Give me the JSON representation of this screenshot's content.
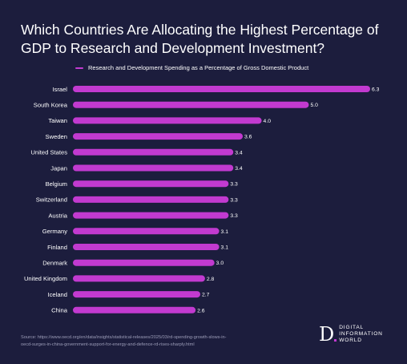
{
  "header": {
    "title": "Which Countries Are Allocating the Highest Percentage of GDP to Research and Development Investment?"
  },
  "colors": {
    "background": "#1c1d3d",
    "bar": "#c23ad0",
    "text": "#ffffff",
    "muted": "#9c9db8"
  },
  "chart_data": {
    "type": "bar",
    "orientation": "horizontal",
    "categories": [
      "Israel",
      "South Korea",
      "Taiwan",
      "Sweden",
      "United States",
      "Japan",
      "Belgium",
      "Switzerland",
      "Austria",
      "Germany",
      "Finland",
      "Denmark",
      "United Kingdom",
      "Iceland",
      "China"
    ],
    "series": [
      {
        "name": "Research and Development Spending as a Percentage of Gross Domestic Product",
        "values": [
          6.3,
          5.0,
          4.0,
          3.6,
          3.4,
          3.4,
          3.3,
          3.3,
          3.3,
          3.1,
          3.1,
          3.0,
          2.8,
          2.7,
          2.6
        ]
      }
    ],
    "value_labels": [
      "6.3",
      "5.0",
      "4.0",
      "3.6",
      "3.4",
      "3.4",
      "3.3",
      "3.3",
      "3.3",
      "3.1",
      "3.1",
      "3.0",
      "2.8",
      "2.7",
      "2.6"
    ],
    "xlim": [
      0,
      6.3
    ],
    "grid": false,
    "legend": "top-left",
    "title": "Which Countries Are Allocating the Highest Percentage of GDP to Research and Development Investment?",
    "xlabel": "",
    "ylabel": ""
  },
  "footer": {
    "source_line1": "Source: https://www.oecd.org/en/data/insights/statistical-releases/2025/03/rd-spending-growth-slows-in-",
    "source_line2": "oecd-surges-in-china-government-support-for-energy-and-defence-rd-rises-sharply.html",
    "brand_mark": "D",
    "brand_line1": "DIGITAL",
    "brand_line2": "INFORMATION",
    "brand_line3": "WORLD"
  }
}
